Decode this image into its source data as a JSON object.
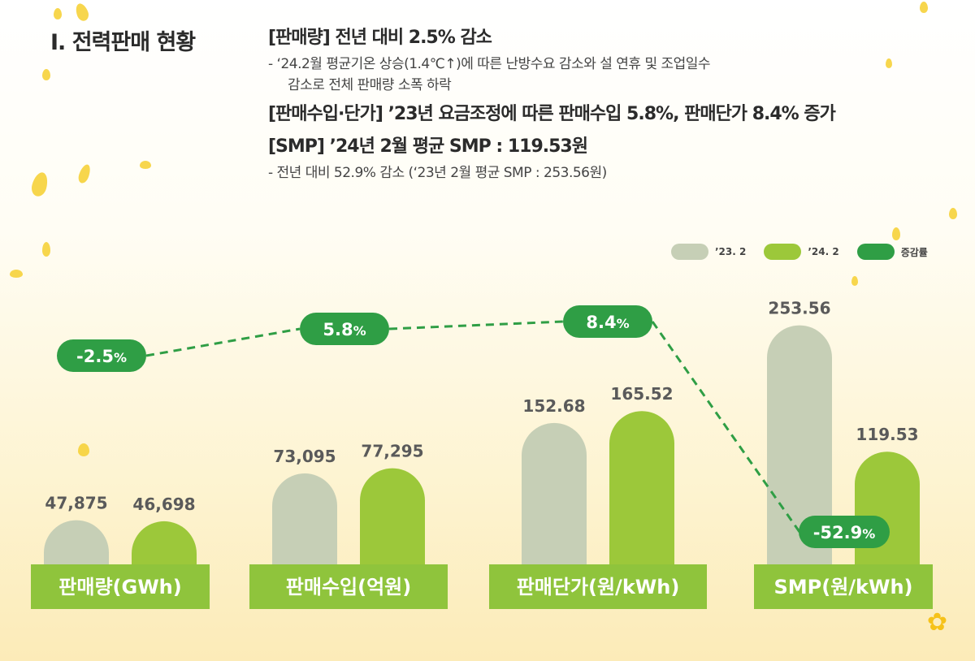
{
  "title": "I. 전력판매 현황",
  "summary": {
    "item1_headline": "[판매량] 전년 대비 2.5% 감소",
    "item1_detail_line1": "- ‘24.2월 평균기온 상승(1.4℃↑)에 따른 난방수요 감소와 설 연휴 및 조업일수",
    "item1_detail_line2": "감소로 전체 판매량 소폭 하락",
    "item2_headline": "[판매수입·단가] ’23년 요금조정에 따른 판매수입 5.8%, 판매단가 8.4% 증가",
    "item3_headline": "[SMP] ’24년 2월 평균 SMP : 119.53원",
    "item3_detail": "- 전년 대비 52.9% 감소 (‘23년 2월 평균 SMP : 253.56원)"
  },
  "legend": {
    "series1": "’23. 2",
    "series2": "’24. 2",
    "rate": "증감률"
  },
  "colors": {
    "series1": "#c6cfb6",
    "series2": "#9cc83a",
    "rate": "#2f9e45",
    "label_bar": "#8fc43c",
    "value_text": "#5a5a5a"
  },
  "chart_data": {
    "type": "bar",
    "categories": [
      "판매량(GWh)",
      "판매수입(억원)",
      "판매단가(원/kWh)",
      "SMP(원/kWh)"
    ],
    "series": [
      {
        "name": "’23. 2",
        "values": [
          47875,
          73095,
          152.68,
          253.56
        ],
        "labels": [
          "47,875",
          "73,095",
          "152.68",
          "253.56"
        ]
      },
      {
        "name": "’24. 2",
        "values": [
          46698,
          77295,
          165.52,
          119.53
        ],
        "labels": [
          "46,698",
          "77,295",
          "165.52",
          "119.53"
        ]
      }
    ],
    "rate": {
      "name": "증감률",
      "values": [
        -2.5,
        5.8,
        8.4,
        -52.9
      ],
      "labels": [
        "-2.5",
        "5.8",
        "8.4",
        "-52.9"
      ],
      "unit": "%"
    },
    "note": "각 항목은 서로 다른 단위의 독립 축"
  }
}
